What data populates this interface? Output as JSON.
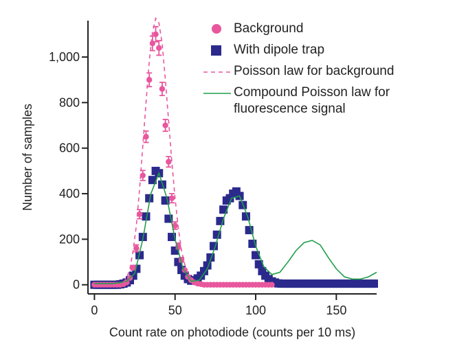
{
  "chart_data": {
    "type": "scatter",
    "x_label": "Count rate on photodiode (counts per 10 ms)",
    "y_label": "Number of samples",
    "xlim": [
      -4,
      175
    ],
    "ylim": [
      -40,
      1160
    ],
    "xticks": [
      0,
      50,
      100,
      150
    ],
    "yticks": [
      0,
      200,
      400,
      600,
      800,
      {
        "value": 1000,
        "label": "1,000"
      }
    ],
    "series": [
      {
        "name": "Background",
        "type": "scatter",
        "marker": "circle",
        "color": "#e8579e",
        "x": [
          0,
          2,
          4,
          6,
          8,
          10,
          12,
          14,
          16,
          18,
          20,
          22,
          24,
          26,
          28,
          30,
          32,
          34,
          36,
          38,
          40,
          42,
          44,
          46,
          48,
          50,
          52,
          54,
          56,
          58,
          60,
          62,
          64,
          66,
          68,
          70,
          72,
          74,
          76,
          78,
          80,
          82,
          84,
          86,
          88,
          90,
          92,
          94,
          96,
          98,
          100,
          102,
          104,
          106,
          108,
          110
        ],
        "values": [
          0,
          0,
          0,
          0,
          0,
          0,
          0,
          0,
          0,
          3,
          10,
          30,
          75,
          160,
          310,
          480,
          650,
          900,
          1060,
          1100,
          1040,
          860,
          700,
          540,
          380,
          260,
          170,
          110,
          65,
          35,
          20,
          10,
          5,
          3,
          0,
          0,
          0,
          0,
          0,
          0,
          0,
          0,
          0,
          0,
          0,
          0,
          0,
          0,
          0,
          0,
          0,
          0,
          0,
          0,
          0,
          0
        ],
        "errors": [
          0,
          0,
          0,
          0,
          0,
          0,
          0,
          0,
          0,
          0,
          0,
          0,
          10,
          15,
          20,
          22,
          25,
          30,
          32,
          33,
          32,
          29,
          26,
          23,
          20,
          16,
          13,
          10,
          0,
          0,
          0,
          0,
          0,
          0,
          0,
          0,
          0,
          0,
          0,
          0,
          0,
          0,
          0,
          0,
          0,
          0,
          0,
          0,
          0,
          0,
          0,
          0,
          0,
          0,
          0,
          0
        ]
      },
      {
        "name": "With dipole trap",
        "type": "scatter",
        "marker": "square",
        "color": "#2b2a8c",
        "x": [
          0,
          2,
          4,
          6,
          8,
          10,
          12,
          14,
          16,
          18,
          20,
          22,
          24,
          26,
          28,
          30,
          32,
          34,
          36,
          38,
          40,
          42,
          44,
          46,
          48,
          50,
          52,
          54,
          56,
          58,
          60,
          62,
          64,
          66,
          68,
          70,
          72,
          74,
          76,
          78,
          80,
          82,
          84,
          86,
          88,
          90,
          92,
          94,
          96,
          98,
          100,
          102,
          104,
          106,
          108,
          110,
          112,
          114,
          116,
          118,
          120,
          122,
          124,
          126,
          128,
          130,
          132,
          134,
          136,
          138,
          140,
          142,
          144,
          146,
          148,
          150,
          152,
          154,
          156,
          158,
          160,
          162,
          164,
          166,
          168,
          170,
          172,
          174
        ],
        "values": [
          0,
          0,
          0,
          0,
          0,
          0,
          0,
          0,
          2,
          5,
          10,
          20,
          40,
          70,
          130,
          210,
          300,
          380,
          460,
          500,
          490,
          440,
          370,
          290,
          210,
          150,
          100,
          65,
          40,
          25,
          18,
          20,
          28,
          40,
          60,
          85,
          120,
          170,
          220,
          280,
          330,
          370,
          380,
          400,
          410,
          390,
          350,
          300,
          240,
          180,
          130,
          90,
          60,
          40,
          25,
          15,
          10,
          6,
          5,
          5,
          5,
          5,
          5,
          5,
          5,
          5,
          5,
          5,
          5,
          5,
          5,
          5,
          5,
          5,
          5,
          5,
          5,
          5,
          5,
          5,
          5,
          5,
          5,
          5,
          5,
          5,
          5,
          5
        ]
      },
      {
        "name": "Poisson law for background",
        "type": "line",
        "dash": true,
        "color": "#e8579e",
        "x": [
          18,
          20,
          22,
          24,
          26,
          28,
          30,
          32,
          34,
          36,
          38,
          40,
          42,
          44,
          46,
          48,
          50,
          52,
          54,
          56,
          58,
          60,
          62
        ],
        "values": [
          10,
          30,
          70,
          150,
          260,
          420,
          610,
          800,
          980,
          1110,
          1170,
          1150,
          1060,
          900,
          720,
          540,
          380,
          250,
          150,
          90,
          50,
          25,
          12
        ]
      },
      {
        "name": "Compound Poisson law for fluorescence signal",
        "type": "line",
        "dash": false,
        "color": "#1f9e4a",
        "x": [
          0,
          5,
          10,
          15,
          20,
          25,
          30,
          35,
          40,
          45,
          50,
          55,
          60,
          65,
          70,
          75,
          80,
          85,
          90,
          95,
          100,
          105,
          110,
          115,
          120,
          125,
          130,
          135,
          140,
          145,
          150,
          155,
          160,
          165,
          170,
          175
        ],
        "values": [
          5,
          5,
          5,
          8,
          15,
          50,
          200,
          400,
          490,
          380,
          200,
          70,
          15,
          20,
          70,
          170,
          290,
          380,
          390,
          300,
          170,
          80,
          45,
          55,
          100,
          150,
          185,
          195,
          175,
          120,
          70,
          35,
          25,
          25,
          35,
          55
        ]
      }
    ]
  }
}
